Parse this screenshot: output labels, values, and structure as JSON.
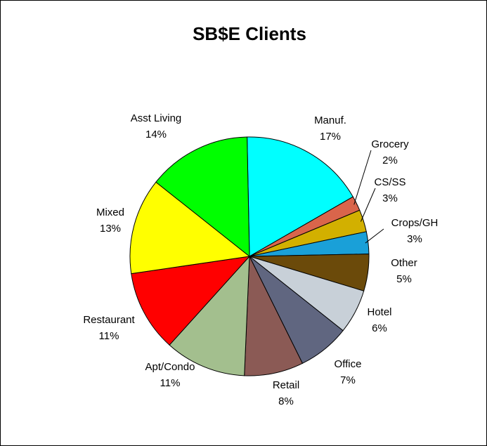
{
  "chart_data": {
    "type": "pie",
    "title": "SB$E Clients",
    "categories": [
      "Manuf.",
      "Grocery",
      "CS/SS",
      "Crops/GH",
      "Other",
      "Hotel",
      "Office",
      "Retail",
      "Apt/Condo",
      "Restaurant",
      "Mixed",
      "Asst Living"
    ],
    "values": [
      17,
      2,
      3,
      3,
      5,
      6,
      7,
      8,
      11,
      11,
      13,
      14
    ],
    "value_labels": [
      "17%",
      "2%",
      "3%",
      "3%",
      "5%",
      "6%",
      "7%",
      "8%",
      "11%",
      "11%",
      "13%",
      "14%"
    ],
    "colors": [
      "#00ffff",
      "#d9654b",
      "#d2b000",
      "#1aa0d8",
      "#6b4a0a",
      "#c8d0d8",
      "#606680",
      "#8b5a55",
      "#a3bf8e",
      "#ff0000",
      "#ffff00",
      "#00ff00"
    ]
  }
}
